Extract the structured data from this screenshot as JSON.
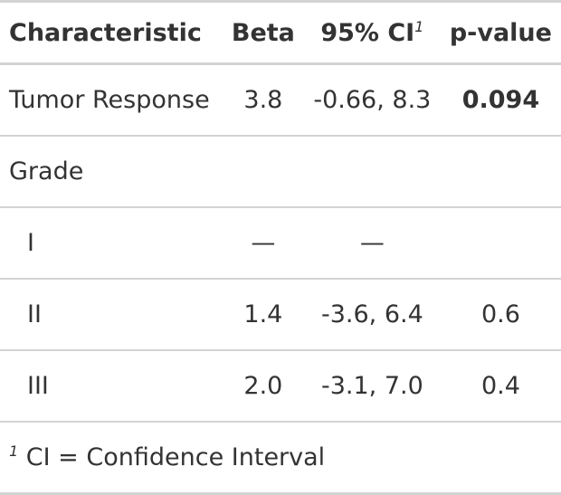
{
  "table": {
    "headers": {
      "characteristic": "Characteristic",
      "beta": "Beta",
      "ci": "95% CI",
      "ci_footnote_mark": "1",
      "pvalue": "p-value"
    },
    "rows": [
      {
        "label": "Tumor Response",
        "beta": "3.8",
        "ci": "-0.66, 8.3",
        "p": "0.094",
        "p_bold": true
      },
      {
        "label": "Grade",
        "beta": "",
        "ci": "",
        "p": ""
      },
      {
        "label": "I",
        "beta": "—",
        "ci": "—",
        "p": ""
      },
      {
        "label": "II",
        "beta": "1.4",
        "ci": "-3.6, 6.4",
        "p": "0.6"
      },
      {
        "label": "III",
        "beta": "2.0",
        "ci": "-3.1, 7.0",
        "p": "0.4"
      }
    ],
    "footnote": {
      "mark": "1",
      "text": "CI = Confidence Interval"
    }
  }
}
